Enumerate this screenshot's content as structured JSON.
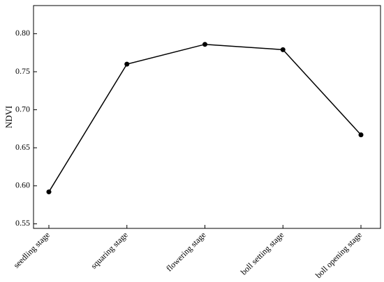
{
  "chart_data": {
    "type": "line",
    "y_label": "NDVI",
    "categories": [
      "seedling stage",
      "squaring stage",
      "flowering stage",
      "boll setting stage",
      "boll opening stage"
    ],
    "series": [
      {
        "name": "NDVI",
        "color": "#000000",
        "values": [
          0.592,
          0.76,
          0.786,
          0.779,
          0.667
        ]
      }
    ],
    "ylim": [
      0.544,
      0.837
    ],
    "yticks": [
      0.55,
      {
        "value": 0.6,
        "label": "0.60"
      },
      0.65,
      {
        "value": 0.7,
        "label": "0.70"
      },
      0.75,
      {
        "value": 0.8,
        "label": "0.80"
      }
    ],
    "grid": false
  }
}
